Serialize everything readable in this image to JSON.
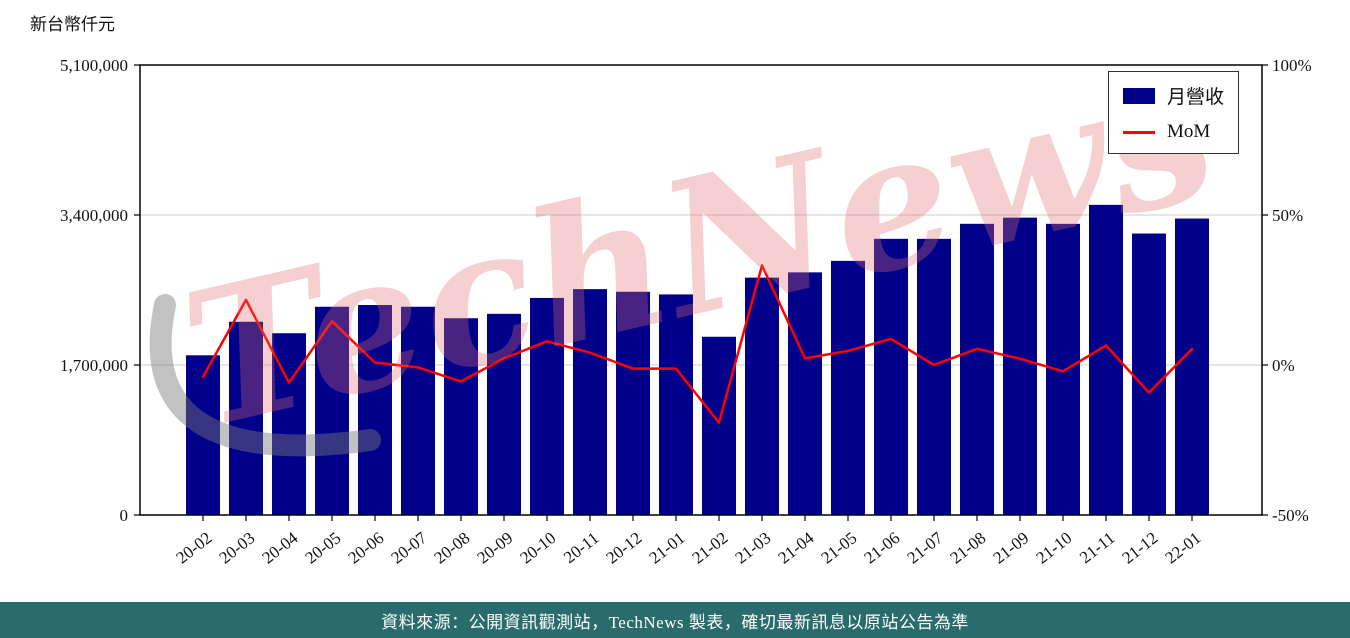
{
  "watermark": "TechNews",
  "footer": {
    "text": "資料來源：公開資訊觀測站，TechNews 製表，確切最新訊息以原站公告為準",
    "bg_color": "#2a6b6b"
  },
  "legend": {
    "bar_label": "月營收",
    "line_label": "MoM"
  },
  "colors": {
    "bar": "#00008b",
    "line": "#ff0000",
    "grid": "#d8d8d8",
    "axis": "#000000",
    "watermark": "rgba(228,110,110,0.32)"
  },
  "chart_data": {
    "type": "bar",
    "title": "",
    "grid": "horizontal",
    "legend_position": "upper right",
    "categories": [
      "20-02",
      "20-03",
      "20-04",
      "20-05",
      "20-06",
      "20-07",
      "20-08",
      "20-09",
      "20-10",
      "20-11",
      "20-12",
      "21-01",
      "21-02",
      "21-03",
      "21-04",
      "21-05",
      "21-06",
      "21-07",
      "21-08",
      "21-09",
      "21-10",
      "21-11",
      "21-12",
      "22-01"
    ],
    "series": [
      {
        "name": "月營收",
        "type": "bar",
        "axis": "left",
        "values": [
          1810000,
          2190000,
          2060000,
          2360000,
          2380000,
          2360000,
          2230000,
          2280000,
          2460000,
          2560000,
          2530000,
          2500000,
          2020000,
          2690000,
          2750000,
          2880000,
          3130000,
          3130000,
          3300000,
          3370000,
          3300000,
          3515000,
          3190000,
          3360000
        ]
      },
      {
        "name": "MoM",
        "type": "line",
        "axis": "right",
        "values_pct": [
          -4.0,
          21.7,
          -5.9,
          14.6,
          0.8,
          -0.8,
          -5.5,
          2.2,
          7.9,
          4.1,
          -1.2,
          -1.2,
          -19.2,
          33.2,
          2.2,
          4.7,
          8.7,
          0.0,
          5.4,
          2.1,
          -2.1,
          6.5,
          -9.2,
          5.3
        ]
      }
    ],
    "left_axis": {
      "unit": "新台幣仟元",
      "range": [
        0,
        5100000
      ],
      "ticks": [
        {
          "value": 0,
          "label": "0"
        },
        {
          "value": 1700000,
          "label": "1,700,000"
        },
        {
          "value": 3400000,
          "label": "3,400,000"
        },
        {
          "value": 5100000,
          "label": "5,100,000"
        }
      ]
    },
    "right_axis": {
      "unit": "%",
      "range_pct": [
        -50,
        100
      ],
      "ticks": [
        {
          "value": -50,
          "label": "-50%"
        },
        {
          "value": 0,
          "label": "0%"
        },
        {
          "value": 50,
          "label": "50%"
        },
        {
          "value": 100,
          "label": "100%"
        }
      ]
    }
  }
}
